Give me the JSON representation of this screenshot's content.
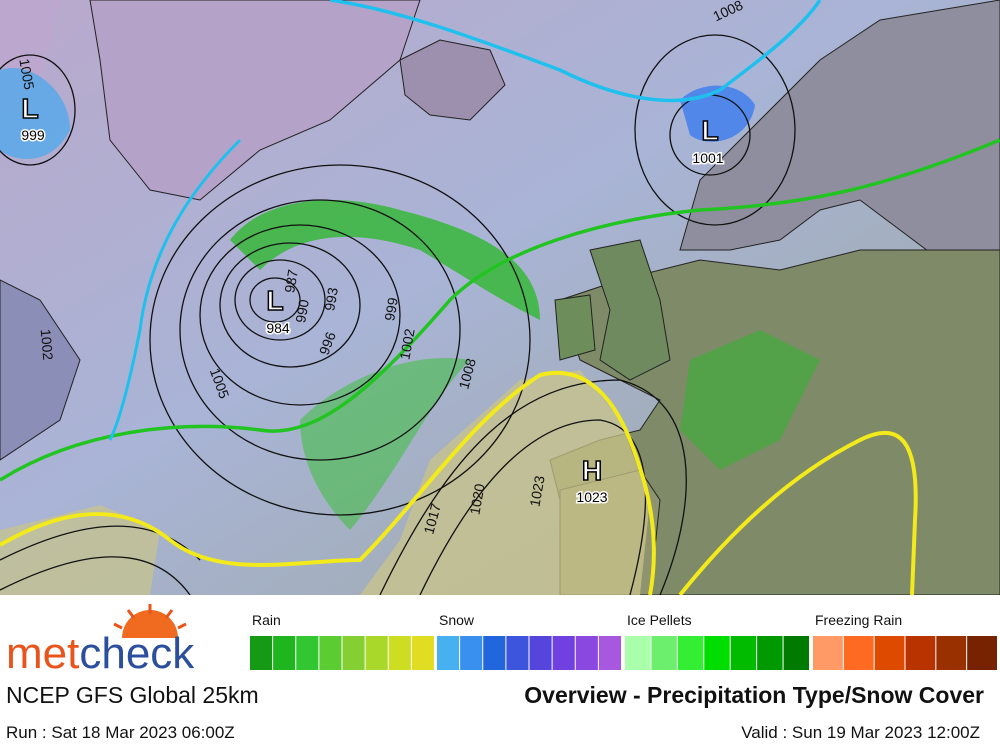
{
  "map": {
    "pressure_centers": [
      {
        "symbol": "L",
        "value": "999"
      },
      {
        "symbol": "L",
        "value": "984"
      },
      {
        "symbol": "L",
        "value": "1001"
      },
      {
        "symbol": "H",
        "value": "1023"
      }
    ],
    "isobar_labels": [
      "1005",
      "1008",
      "987",
      "990",
      "993",
      "996",
      "999",
      "1002",
      "1008",
      "1005",
      "1017",
      "1020",
      "1023",
      "1002"
    ]
  },
  "legend": [
    {
      "label": "Rain",
      "colors": [
        "#169a16",
        "#1fb51f",
        "#33c633",
        "#5ccc33",
        "#86cf33",
        "#aad82a",
        "#ccdd22",
        "#e0dd22"
      ]
    },
    {
      "label": "Snow",
      "colors": [
        "#47b0f0",
        "#3a90ee",
        "#2266dd",
        "#3d55dd",
        "#5545dd",
        "#7040e0",
        "#8a48e0",
        "#a858de"
      ]
    },
    {
      "label": "Ice Pellets",
      "colors": [
        "#aaffaa",
        "#6cef6c",
        "#33ee33",
        "#00dd00",
        "#00bb00",
        "#009a00",
        "#007a00"
      ]
    },
    {
      "label": "Freezing Rain",
      "colors": [
        "#ff9966",
        "#ff6a22",
        "#dd4a00",
        "#b83300",
        "#993000",
        "#772200"
      ]
    }
  ],
  "footer": {
    "brand_left": "met",
    "brand_right": "check",
    "model": "NCEP GFS Global 25km",
    "product": "Overview - Precipitation Type/Snow Cover",
    "run": "Run : Sat 18 Mar 2023 06:00Z",
    "valid": "Valid : Sun 19 Mar 2023 12:00Z"
  }
}
